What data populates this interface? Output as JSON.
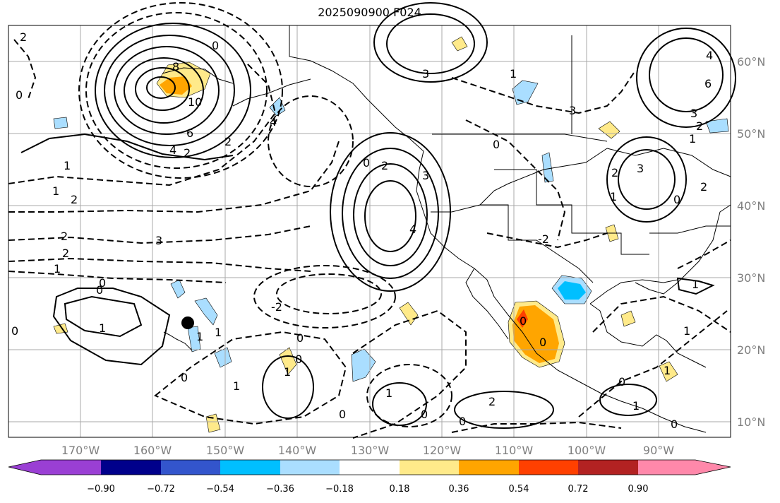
{
  "title": "2025090900 F024",
  "map": {
    "lat_labels": [
      "60°N",
      "50°N",
      "40°N",
      "30°N",
      "20°N",
      "10°N"
    ],
    "lon_labels": [
      "170°W",
      "160°W",
      "150°W",
      "140°W",
      "130°W",
      "120°W",
      "110°W",
      "100°W",
      "90°W"
    ],
    "contour_labels": [
      "2",
      "0",
      "1",
      "8",
      "10",
      "6",
      "4",
      "2",
      "1",
      "2",
      "2",
      "3",
      "2",
      "1",
      "0",
      "0",
      "1",
      "3",
      "4",
      "2",
      "0",
      "2",
      "3",
      "4",
      "0",
      "4",
      "3",
      "2",
      "3",
      "1",
      "1",
      "6",
      "3",
      "2",
      "1",
      "2",
      "0",
      "-2",
      "0",
      "1",
      "0",
      "0",
      "1",
      "0",
      "1",
      "0",
      "0",
      "1",
      "0",
      "2",
      "0",
      "1",
      "1",
      "0",
      "1",
      "0",
      "0",
      "1",
      "-2",
      "0",
      "1"
    ]
  },
  "colorbar": {
    "ticks": [
      "−0.90",
      "−0.72",
      "−0.54",
      "−0.36",
      "−0.18",
      "0.18",
      "0.36",
      "0.54",
      "0.72",
      "0.90"
    ],
    "colors": [
      "#9a3fd4",
      "#00008b",
      "#3355cc",
      "#00bfff",
      "#aadeff",
      "#ffffff",
      "#ffea8a",
      "#ffa500",
      "#ff4000",
      "#b22222",
      "#ff88aa"
    ]
  }
}
